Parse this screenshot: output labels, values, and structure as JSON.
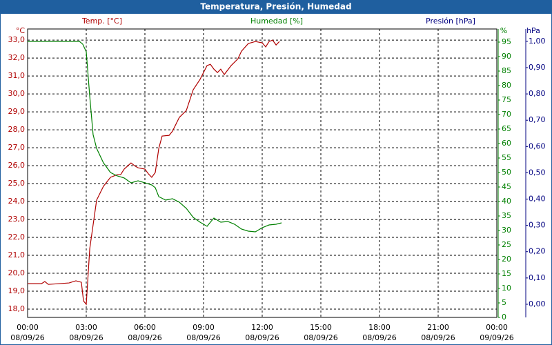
{
  "chart_data": {
    "type": "line",
    "title": "Temperatura, Presión, Humedad",
    "y_unit": "°C",
    "y2_unit": "%",
    "y3_unit": "hPa",
    "y3_label": "Presión [hPa]",
    "y3_color": "#000080",
    "grid": true,
    "xlim": [
      0,
      24
    ],
    "xticks": [
      {
        "value": 0,
        "label": "00:00",
        "date": "08/09/26"
      },
      {
        "value": 3,
        "label": "03:00",
        "date": "08/09/26"
      },
      {
        "value": 6,
        "label": "06:00",
        "date": "08/09/26"
      },
      {
        "value": 9,
        "label": "09:00",
        "date": "08/09/26"
      },
      {
        "value": 12,
        "label": "12:00",
        "date": "08/09/26"
      },
      {
        "value": 15,
        "label": "15:00",
        "date": "08/09/26"
      },
      {
        "value": 18,
        "label": "18:00",
        "date": "08/09/26"
      },
      {
        "value": 21,
        "label": "21:00",
        "date": "08/09/26"
      },
      {
        "value": 24,
        "label": "00:00",
        "date": "09/09/26"
      }
    ],
    "ylim": [
      17.54,
      33.62
    ],
    "yticks": [
      {
        "value": 18,
        "label": "18,0"
      },
      {
        "value": 19,
        "label": "19,0"
      },
      {
        "value": 20,
        "label": "20,0"
      },
      {
        "value": 21,
        "label": "21,0"
      },
      {
        "value": 22,
        "label": "22,0"
      },
      {
        "value": 23,
        "label": "23,0"
      },
      {
        "value": 24,
        "label": "24,0"
      },
      {
        "value": 25,
        "label": "25,0"
      },
      {
        "value": 26,
        "label": "26,0"
      },
      {
        "value": 27,
        "label": "27,0"
      },
      {
        "value": 28,
        "label": "28,0"
      },
      {
        "value": 29,
        "label": "29,0"
      },
      {
        "value": 30,
        "label": "30,0"
      },
      {
        "value": 31,
        "label": "31,0"
      },
      {
        "value": 32,
        "label": "32,0"
      },
      {
        "value": 33,
        "label": "33,0"
      }
    ],
    "y2lim": [
      0,
      99.52
    ],
    "y2ticks": [
      0,
      5,
      10,
      15,
      20,
      25,
      30,
      35,
      40,
      45,
      50,
      55,
      60,
      65,
      70,
      75,
      80,
      85,
      90,
      95
    ],
    "y3lim": [
      -0.05,
      1.047
    ],
    "y3ticks": [
      {
        "value": 0,
        "label": "0,00"
      },
      {
        "value": 0.1,
        "label": "0,10"
      },
      {
        "value": 0.2,
        "label": "0,20"
      },
      {
        "value": 0.3,
        "label": "0,30"
      },
      {
        "value": 0.4,
        "label": "0,40"
      },
      {
        "value": 0.5,
        "label": "0,50"
      },
      {
        "value": 0.6,
        "label": "0,60"
      },
      {
        "value": 0.7,
        "label": "0,70"
      },
      {
        "value": 0.8,
        "label": "0,80"
      },
      {
        "value": 0.9,
        "label": "0,90"
      },
      {
        "value": 1,
        "label": "1,00"
      }
    ],
    "series": [
      {
        "name": "Temp. [°C]",
        "color": "#b00000",
        "axis": "y",
        "x": [
          0,
          0.71,
          0.88,
          1.06,
          2.12,
          2.47,
          2.75,
          2.86,
          3.0,
          3.18,
          3.53,
          3.88,
          4.24,
          4.59,
          4.76,
          4.94,
          5.29,
          5.47,
          5.65,
          6.0,
          6.18,
          6.35,
          6.53,
          6.71,
          6.88,
          7.24,
          7.41,
          7.76,
          8.12,
          8.47,
          8.82,
          9.18,
          9.35,
          9.53,
          9.71,
          9.88,
          10.06,
          10.41,
          10.76,
          10.94,
          11.29,
          11.65,
          12.0,
          12.18,
          12.35,
          12.53,
          12.71,
          12.88
        ],
        "values": [
          19.42,
          19.42,
          19.54,
          19.38,
          19.46,
          19.58,
          19.5,
          18.46,
          18.27,
          21.38,
          24.08,
          24.85,
          25.35,
          25.5,
          25.5,
          25.81,
          26.15,
          26.0,
          25.88,
          25.81,
          25.54,
          25.35,
          25.62,
          26.96,
          27.65,
          27.69,
          27.92,
          28.69,
          29.08,
          30.23,
          30.81,
          31.58,
          31.65,
          31.38,
          31.19,
          31.38,
          31.08,
          31.58,
          31.96,
          32.38,
          32.81,
          32.92,
          32.85,
          32.62,
          32.92,
          33.0,
          32.73,
          32.92
        ]
      },
      {
        "name": "Humedad [%]",
        "color": "#008000",
        "axis": "y2",
        "x": [
          0,
          2.65,
          2.82,
          3.0,
          3.18,
          3.35,
          3.53,
          3.88,
          4.24,
          4.59,
          4.94,
          5.29,
          5.65,
          6.0,
          6.35,
          6.53,
          6.71,
          7.06,
          7.41,
          7.76,
          8.12,
          8.47,
          8.82,
          9.18,
          9.35,
          9.53,
          9.88,
          10.24,
          10.59,
          10.94,
          11.29,
          11.65,
          12.0,
          12.35,
          12.71,
          12.99
        ],
        "values": [
          95.24,
          95.24,
          94.29,
          91.67,
          76.19,
          63.1,
          58.33,
          53.33,
          50.0,
          48.81,
          48.1,
          46.43,
          47.14,
          46.43,
          45.71,
          44.76,
          41.67,
          40.48,
          40.95,
          39.76,
          37.62,
          34.52,
          32.86,
          31.43,
          32.86,
          34.29,
          32.86,
          33.1,
          32.14,
          30.48,
          29.76,
          29.52,
          30.95,
          31.9,
          32.14,
          32.62
        ]
      }
    ]
  }
}
